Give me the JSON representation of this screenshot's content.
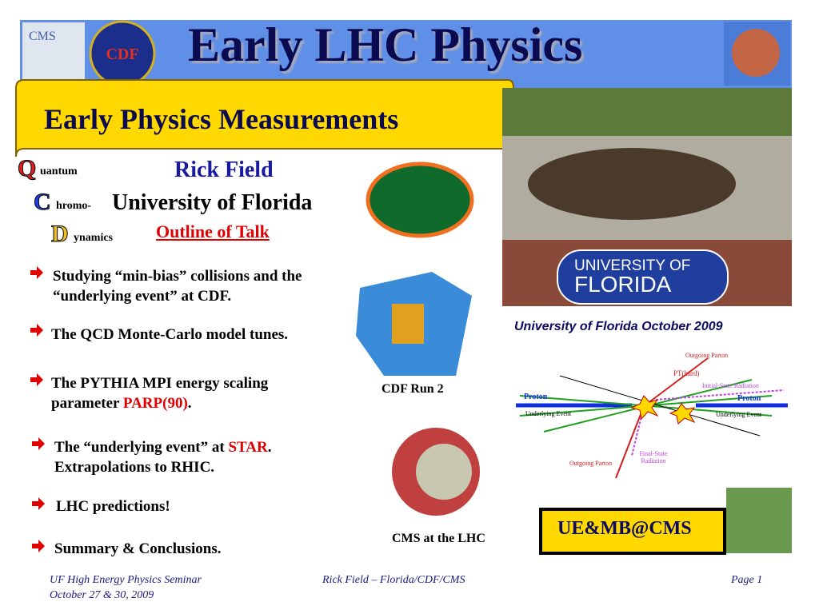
{
  "header": {
    "title": "Early LHC Physics",
    "subtitle": "Early Physics Measurements",
    "logos": {
      "cms": "CMS",
      "cdf": "CDF"
    }
  },
  "qcd": {
    "q": "Q",
    "quantum": "uantum",
    "c": "C",
    "chromo": "hromo-",
    "d": "D",
    "dynamics": "ynamics"
  },
  "author": {
    "name": "Rick Field",
    "affiliation": "University of Florida",
    "outline": "Outline of Talk"
  },
  "photo": {
    "logo_line1": "UNIVERSITY OF",
    "logo_line2": "FLORIDA",
    "caption": "University of Florida October 2009"
  },
  "bullets": [
    [
      "Studying “min-bias” collisions and the “underlying event” at CDF."
    ],
    [
      "The QCD Monte-Carlo model tunes."
    ],
    [
      "The PYTHIA MPI energy scaling parameter ",
      "PARP(90)",
      "."
    ],
    [
      "The “underlying event” at ",
      "STAR",
      ".",
      "Extrapolations to RHIC."
    ],
    [
      "LHC predictions!"
    ],
    [
      "Summary & Conclusions."
    ]
  ],
  "detectors": {
    "cdf_caption": "CDF Run 2",
    "cms_caption": "CMS at the LHC"
  },
  "diagram": {
    "outgoing_parton_top": "Outgoing Parton",
    "pt_hard": "PT(hard)",
    "isr": "Initial-State Radiation",
    "proton_left": "Proton",
    "proton_right": "Proton",
    "ue_left": "Underlying Event",
    "ue_right": "Underlying Event",
    "fsr": "Final-State Radiation",
    "outgoing_parton_bottom": "Outgoing Parton"
  },
  "badge": "UE&MB@CMS",
  "footer": {
    "seminar": "UF High Energy Physics Seminar",
    "date": "October 27 & 30, 2009",
    "author": "Rick Field – Florida/CDF/CMS",
    "page": "Page 1"
  }
}
